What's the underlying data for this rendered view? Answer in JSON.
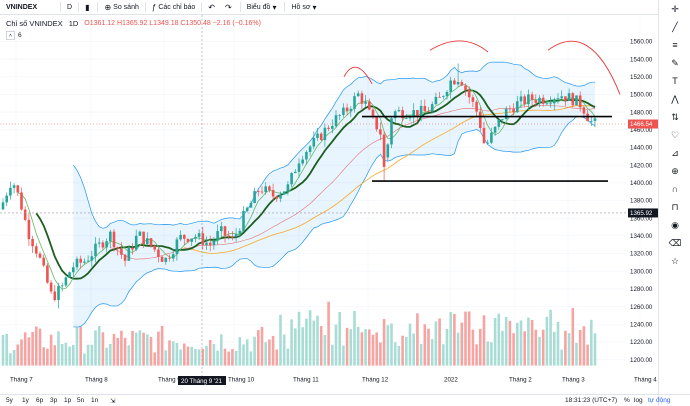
{
  "topbar": {
    "symbol": "VNINDEX",
    "interval": "D",
    "compare_label": "So sánh",
    "indicators_label": "Các chỉ báo",
    "chart_type_label": "Biểu đồ",
    "templates_label": "Hồ sơ"
  },
  "legend": {
    "title": "Chỉ số VNINDEX",
    "interval": "1D",
    "ohlc": "O1361.12 H1365.92 L1349.18 C1350.48 −2.16 (−0.16%)"
  },
  "collapse": {
    "count": "6"
  },
  "price_axis": {
    "labels": [
      "1560.00",
      "1540.00",
      "1520.00",
      "1500.00",
      "1480.00",
      "1460.00",
      "1440.00",
      "1420.00",
      "1400.00",
      "1380.00",
      "1360.00",
      "1340.00",
      "1320.00",
      "1300.00",
      "1280.00",
      "1260.00",
      "1240.00",
      "1220.00",
      "1200.00"
    ],
    "last_price": "1466.54",
    "cursor_price": "1365.92"
  },
  "time_axis": {
    "labels": [
      "Tháng 7",
      "Tháng 8",
      "Tháng 9",
      "Tháng 10",
      "Tháng 11",
      "Tháng 12",
      "2022",
      "Tháng 2",
      "Tháng 3",
      "Tháng 4"
    ],
    "cursor_date": "20 Tháng 9 '21"
  },
  "bottombar": {
    "timeframes": [
      "5y",
      "1y",
      "6p",
      "3p",
      "1p",
      "5n",
      "1n"
    ],
    "clock": "18:31:23 (UTC+7)",
    "percent_label": "%",
    "log_label": "log",
    "auto_label": "tự động"
  },
  "sidebar_icons": [
    "crosshair-icon",
    "trend-line-icon",
    "fib-icon",
    "brush-icon",
    "text-icon",
    "pattern-icon",
    "prediction-icon",
    "heart-icon",
    "ruler-icon",
    "zoom-icon",
    "magnet-icon",
    "lock-icon",
    "eye-icon",
    "trash-icon",
    "star-icon"
  ],
  "colors": {
    "up": "#26a69a",
    "down": "#ef5350",
    "bb": "#2196f3",
    "ma_fast": "#43a047",
    "ma_mid": "#1b5e20",
    "ma_slow": "#f9a825",
    "annot_red": "#e53935"
  }
}
